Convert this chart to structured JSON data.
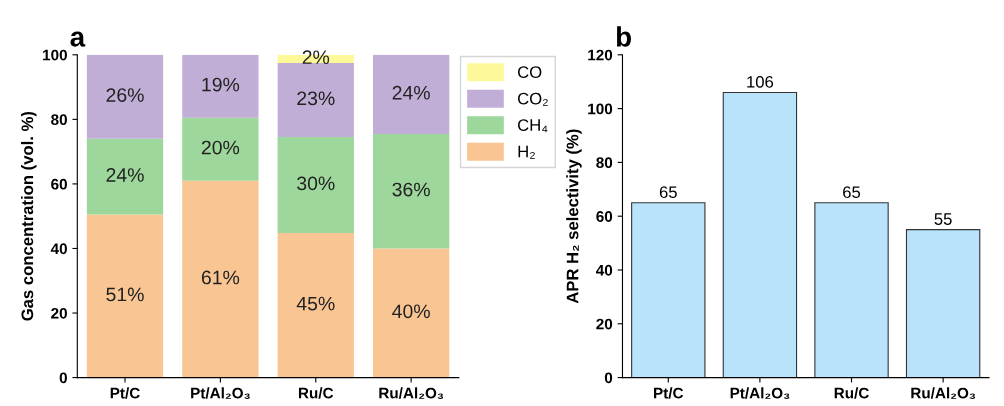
{
  "chart_data": [
    {
      "type": "bar",
      "title": "a",
      "ylabel": "Gas concentration (vol. %)",
      "categories": [
        "Pt/C",
        "Pt/Al₂O₃",
        "Ru/C",
        "Ru/Al₂O₃"
      ],
      "stacked": true,
      "ylim": [
        0,
        100
      ],
      "yticks": [
        0,
        20,
        40,
        60,
        80,
        100
      ],
      "legend": "right",
      "grid": false,
      "series": [
        {
          "name": "H₂",
          "color": "#f9c593",
          "values": [
            50.5,
            61,
            44.8,
            40
          ],
          "value_labels": [
            "51%",
            "61%",
            "45%",
            "40%"
          ]
        },
        {
          "name": "CH₄",
          "color": "#9dd79b",
          "values": [
            23.5,
            19.5,
            29.7,
            35.5
          ],
          "value_labels": [
            "24%",
            "20%",
            "30%",
            "36%"
          ]
        },
        {
          "name": "CO₂",
          "color": "#c1aed6",
          "values": [
            26,
            19.5,
            23,
            24.5
          ],
          "value_labels": [
            "26%",
            "19%",
            "23%",
            "24%"
          ]
        },
        {
          "name": "CO",
          "color": "#fdf99a",
          "values": [
            null,
            null,
            2.5,
            null
          ],
          "value_labels": [
            null,
            null,
            "2%",
            null
          ]
        }
      ]
    },
    {
      "type": "bar",
      "title": "b",
      "ylabel": "APR H₂ selectivity (%)",
      "categories": [
        "Pt/C",
        "Pt/Al₂O₃",
        "Ru/C",
        "Ru/Al₂O₃"
      ],
      "ylim": [
        0,
        120
      ],
      "yticks": [
        0,
        20,
        40,
        60,
        80,
        100,
        120
      ],
      "grid": false,
      "data_labels": true,
      "series": [
        {
          "color": "#b8e3fb",
          "values": [
            65,
            106,
            65,
            55
          ]
        }
      ]
    }
  ]
}
